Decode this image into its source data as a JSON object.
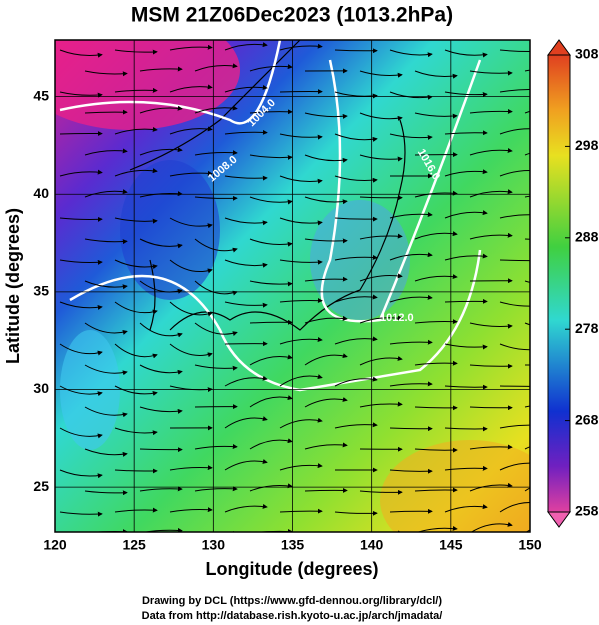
{
  "title": "MSM 21Z06Dec2023 (1013.2hPa)",
  "x_axis": {
    "label": "Longitude (degrees)",
    "lim": [
      120,
      150
    ],
    "ticks": [
      120,
      125,
      130,
      135,
      140,
      145,
      150
    ]
  },
  "y_axis": {
    "label": "Latitude  (degrees)",
    "lim": [
      22.7,
      47.9
    ],
    "ticks": [
      25,
      30,
      35,
      40,
      45
    ]
  },
  "colorbar": {
    "lim": [
      258,
      308
    ],
    "ticks": [
      258,
      268,
      278,
      288,
      298,
      308
    ]
  },
  "contour_labels": [
    "1004.0",
    "1008.0",
    "1012.0",
    "1016.0"
  ],
  "credits": [
    "Drawing by DCL (https://www.gfd-dennou.org/library/dcl/)",
    "Data from http://database.rish.kyoto-u.ac.jp/arch/jmadata/"
  ]
}
